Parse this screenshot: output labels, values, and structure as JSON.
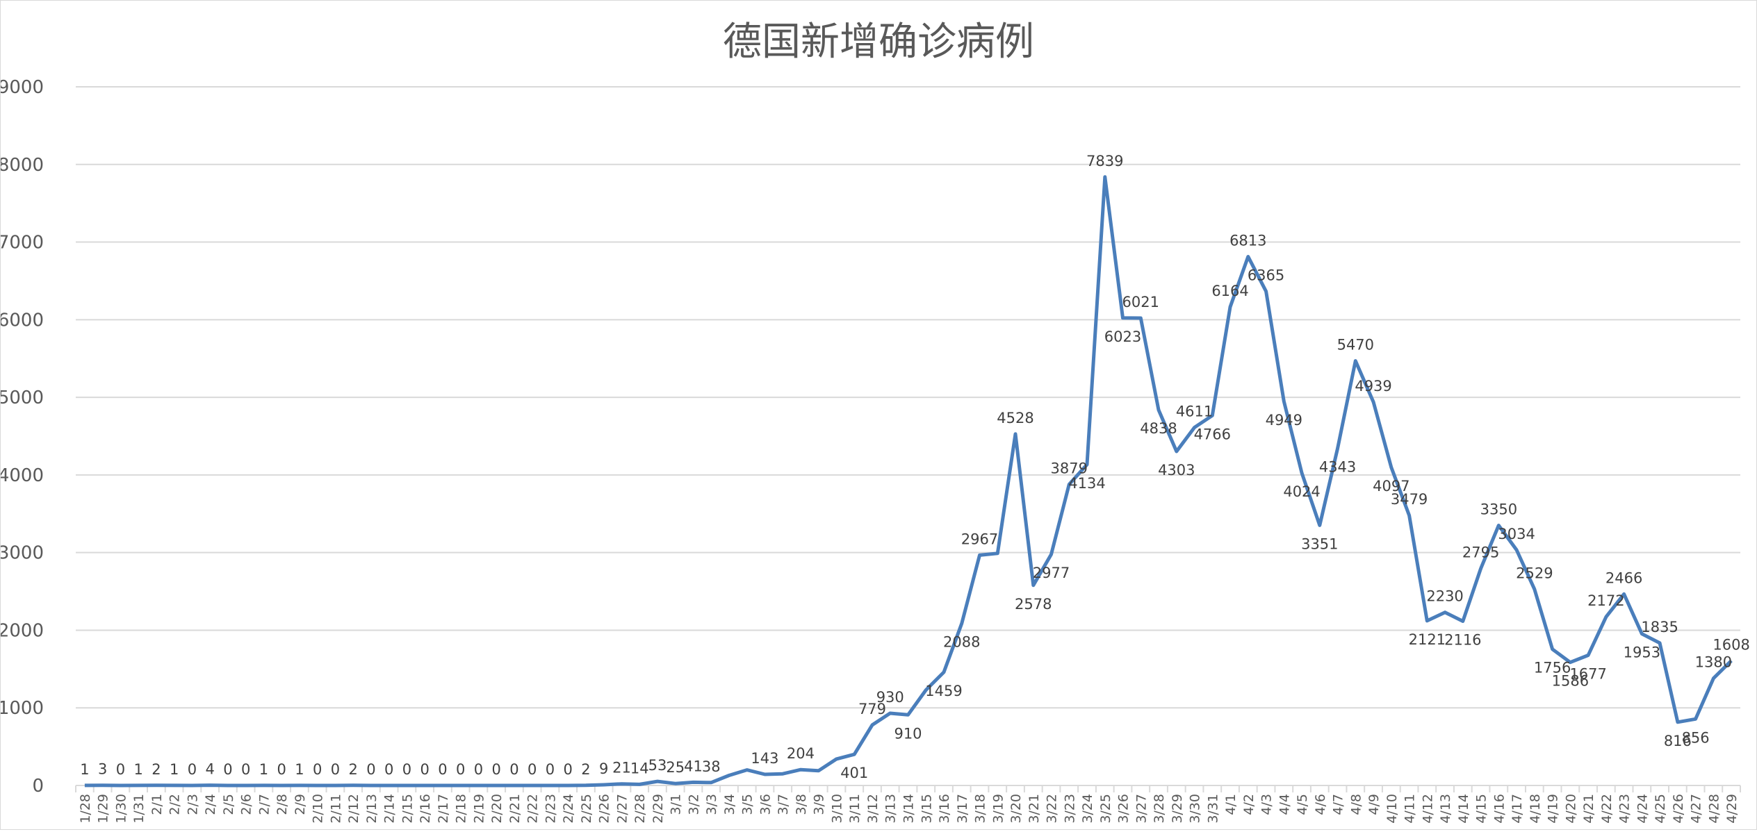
{
  "chart_data": {
    "type": "line",
    "title": "德国新增确诊病例",
    "xlabel": "",
    "ylabel": "",
    "ylim": [
      0,
      9000
    ],
    "yticks": [
      "0",
      "1000",
      "2000",
      "3000",
      "4000",
      "5000",
      "6000",
      "7000",
      "8000",
      "9000"
    ],
    "grid": true,
    "legend": "none",
    "colors": {
      "line": "#4a7ebb",
      "grid": "#d9d9d9",
      "text": "#404040",
      "title": "#595959"
    },
    "categories": [
      "1/28",
      "1/29",
      "1/30",
      "1/31",
      "2/1",
      "2/2",
      "2/3",
      "2/4",
      "2/5",
      "2/6",
      "2/7",
      "2/8",
      "2/9",
      "2/10",
      "2/11",
      "2/12",
      "2/13",
      "2/14",
      "2/15",
      "2/16",
      "2/17",
      "2/18",
      "2/19",
      "2/20",
      "2/21",
      "2/22",
      "2/23",
      "2/24",
      "2/25",
      "2/26",
      "2/27",
      "2/28",
      "2/29",
      "3/1",
      "3/2",
      "3/3",
      "3/4",
      "3/5",
      "3/6",
      "3/7",
      "3/8",
      "3/9",
      "3/10",
      "3/11",
      "3/12",
      "3/13",
      "3/14",
      "3/15",
      "3/16",
      "3/17",
      "3/18",
      "3/19",
      "3/20",
      "3/21",
      "3/22",
      "3/23",
      "3/24",
      "3/25",
      "3/26",
      "3/27",
      "3/28",
      "3/29",
      "3/30",
      "3/31",
      "4/1",
      "4/2",
      "4/3",
      "4/4",
      "4/5",
      "4/6",
      "4/7",
      "4/8",
      "4/9",
      "4/10",
      "4/11",
      "4/12",
      "4/13",
      "4/14",
      "4/15",
      "4/16",
      "4/17",
      "4/18",
      "4/19",
      "4/20",
      "4/21",
      "4/22",
      "4/23",
      "4/24",
      "4/25",
      "4/26",
      "4/27",
      "4/28",
      "4/29"
    ],
    "values": [
      1,
      3,
      0,
      1,
      2,
      1,
      0,
      4,
      0,
      0,
      1,
      0,
      1,
      0,
      0,
      2,
      0,
      0,
      0,
      0,
      0,
      0,
      0,
      0,
      0,
      0,
      0,
      0,
      2,
      9,
      21,
      14,
      53,
      25,
      41,
      38,
      130,
      200,
      143,
      150,
      204,
      190,
      341,
      401,
      779,
      930,
      910,
      1230,
      1459,
      2088,
      2967,
      2990,
      4528,
      2578,
      2977,
      3879,
      4134,
      7839,
      6023,
      6021,
      4838,
      4303,
      4611,
      4766,
      6164,
      6813,
      6365,
      4949,
      4024,
      3351,
      4343,
      5470,
      4939,
      4097,
      3479,
      2121,
      2230,
      2116,
      2795,
      3350,
      3034,
      2529,
      1756,
      1586,
      1677,
      2172,
      2466,
      1953,
      1835,
      816,
      856,
      1380,
      1608
    ],
    "labels": [
      "1",
      "3",
      "0",
      "1",
      "2",
      "1",
      "0",
      "4",
      "0",
      "0",
      "1",
      "0",
      "1",
      "0",
      "0",
      "2",
      "0",
      "0",
      "0",
      "0",
      "0",
      "0",
      "0",
      "0",
      "0",
      "0",
      "0",
      "0",
      "2",
      "9",
      "21",
      "14",
      "53",
      "25",
      "41",
      "38",
      null,
      null,
      "143",
      null,
      "204",
      null,
      null,
      "401",
      "779",
      "930",
      "910",
      null,
      "1459",
      "2088",
      "2967",
      null,
      "4528",
      "2578",
      "2977",
      "3879",
      "4134",
      "7839",
      "6023",
      "6021",
      "4838",
      "4303",
      "4611",
      "4766",
      "6164",
      "6813",
      "6365",
      "4949",
      "4024",
      "3351",
      "4343",
      "5470",
      "4939",
      "4097",
      "3479",
      "2121",
      "2230",
      "2116",
      "2795",
      "3350",
      "3034",
      "2529",
      "1756",
      "1586",
      "1677",
      "2172",
      "2466",
      "1953",
      "1835",
      "816",
      "856",
      "1380",
      "1608"
    ]
  }
}
